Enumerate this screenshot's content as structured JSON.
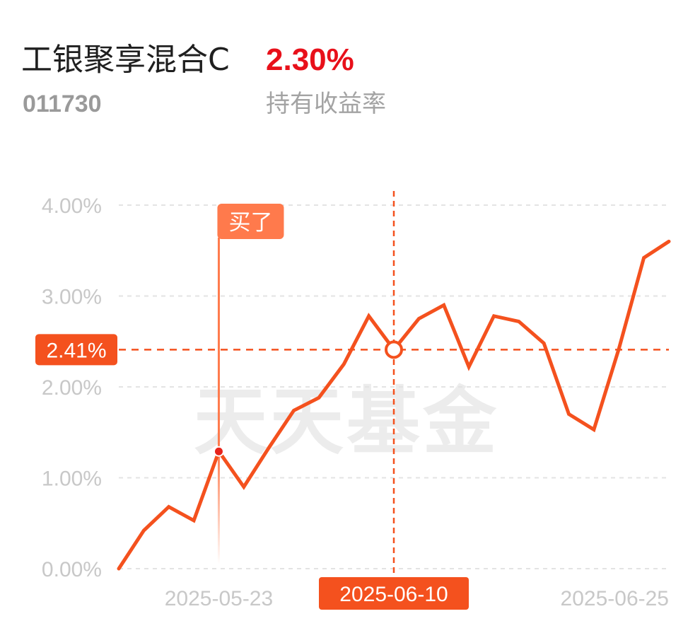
{
  "header": {
    "fund_name": "工银聚享混合C",
    "fund_code": "011730",
    "rate_value": "2.30%",
    "rate_label": "持有收益率"
  },
  "colors": {
    "line": "#f4511e",
    "accent": "#f4511e",
    "rate_red": "#e8101a",
    "buy_marker": "#ff7a4c",
    "grid": "#e3e3e3",
    "axis_label": "#c8c8c8"
  },
  "chart_data": {
    "type": "line",
    "title": "",
    "xlabel": "",
    "ylabel": "",
    "ylim": [
      0,
      4
    ],
    "yticks": [
      0,
      1,
      2,
      3,
      4
    ],
    "ytick_labels": [
      "0.00%",
      "1.00%",
      "2.00%",
      "3.00%",
      "4.00%"
    ],
    "x_tick_labels": [
      {
        "label": "2025-05-23",
        "index": 4
      },
      {
        "label": "2025-06-10",
        "index": 11
      },
      {
        "label": "2025-06-25",
        "index": 22
      }
    ],
    "grid": true,
    "legend": "none",
    "series": [
      {
        "values": [
          0.0,
          0.42,
          0.68,
          0.53,
          1.29,
          0.9,
          1.33,
          1.74,
          1.88,
          2.25,
          2.78,
          2.41,
          2.75,
          2.9,
          2.22,
          2.78,
          2.72,
          2.48,
          1.7,
          1.53,
          2.42,
          3.42,
          3.6
        ]
      }
    ],
    "buy_marker": {
      "index": 4,
      "label": "买了"
    },
    "crosshair": {
      "index": 11,
      "date_label": "2025-06-10",
      "value_label": "2.41%",
      "value": 2.41
    }
  },
  "watermark": {
    "text": "天天基金"
  }
}
